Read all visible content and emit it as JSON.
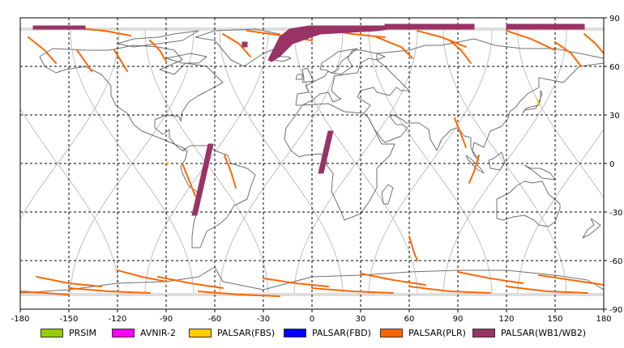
{
  "map": {
    "projection": "equirectangular",
    "lon_range": [
      -180,
      180
    ],
    "lat_range": [
      -90,
      90
    ],
    "grid": "dashed, every 30 degrees",
    "x_ticks": [
      -180,
      -150,
      -120,
      -90,
      -60,
      -30,
      0,
      30,
      60,
      90,
      120,
      150,
      180
    ],
    "y_ticks": [
      90,
      60,
      30,
      0,
      -30,
      -60,
      -90
    ]
  },
  "legend": [
    {
      "label": "PRSIM",
      "color": "#99cc00"
    },
    {
      "label": "AVNIR-2",
      "color": "#ff00ff"
    },
    {
      "label": "PALSAR(FBS)",
      "color": "#ffcc00"
    },
    {
      "label": "PALSAR(FBD)",
      "color": "#0000ff"
    },
    {
      "label": "PALSAR(PLR)",
      "color": "#ff6600"
    },
    {
      "label": "PALSAR(WB1/WB2)",
      "color": "#993366"
    }
  ]
}
